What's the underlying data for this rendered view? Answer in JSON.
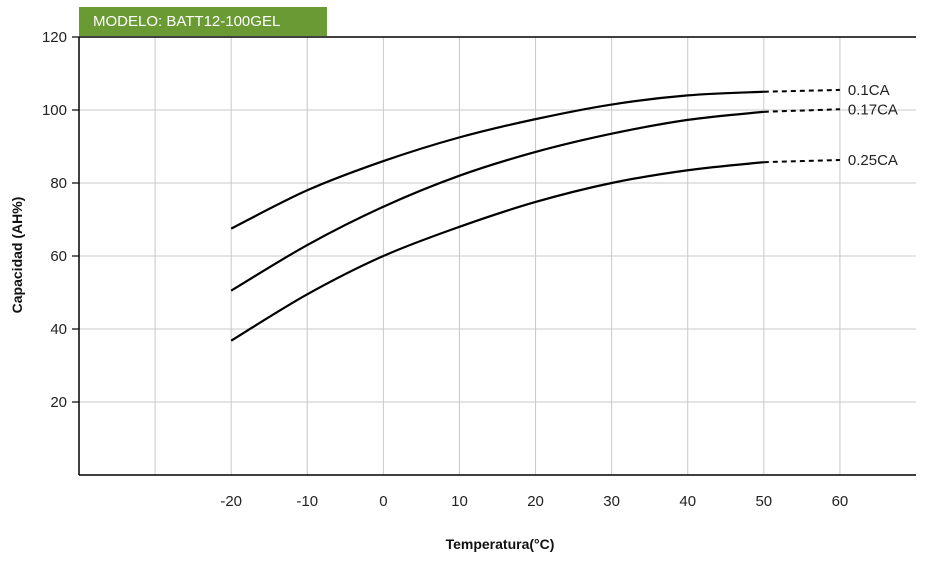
{
  "model_badge": "MODELO: BATT12-100GEL",
  "chart_data": {
    "type": "line",
    "xlabel": "Temperatura(°C)",
    "ylabel": "Capacidad  (AH%)",
    "xlim": [
      -40,
      70
    ],
    "ylim": [
      0,
      120
    ],
    "x_ticks": [
      -20,
      -10,
      0,
      10,
      20,
      30,
      40,
      50,
      60
    ],
    "x_tick_labels": [
      "-20",
      "-10",
      "0",
      "10",
      "20",
      "30",
      "40",
      "50",
      "60"
    ],
    "y_ticks": [
      20,
      40,
      60,
      80,
      100,
      120
    ],
    "y_tick_labels": [
      "20",
      "40",
      "60",
      "80",
      "100",
      "120"
    ],
    "grid": true,
    "series": [
      {
        "name": "0.1CA",
        "x": [
          -20,
          -10,
          0,
          10,
          20,
          30,
          40,
          50
        ],
        "y": [
          67.5,
          78,
          86,
          92.5,
          97.5,
          101.5,
          104,
          105
        ],
        "extrapolated": {
          "x": [
            50,
            60
          ],
          "y": [
            105,
            105.5
          ]
        }
      },
      {
        "name": "0.17CA",
        "x": [
          -20,
          -10,
          0,
          10,
          20,
          30,
          40,
          50
        ],
        "y": [
          50.5,
          63,
          73.5,
          82,
          88.5,
          93.5,
          97.3,
          99.5
        ],
        "extrapolated": {
          "x": [
            50,
            60
          ],
          "y": [
            99.5,
            100.2
          ]
        }
      },
      {
        "name": "0.25CA",
        "x": [
          -20,
          -10,
          0,
          10,
          20,
          30,
          40,
          50
        ],
        "y": [
          36.8,
          49.5,
          60,
          68,
          74.8,
          80,
          83.5,
          85.7
        ],
        "extrapolated": {
          "x": [
            50,
            60
          ],
          "y": [
            85.7,
            86.3
          ]
        }
      }
    ]
  }
}
